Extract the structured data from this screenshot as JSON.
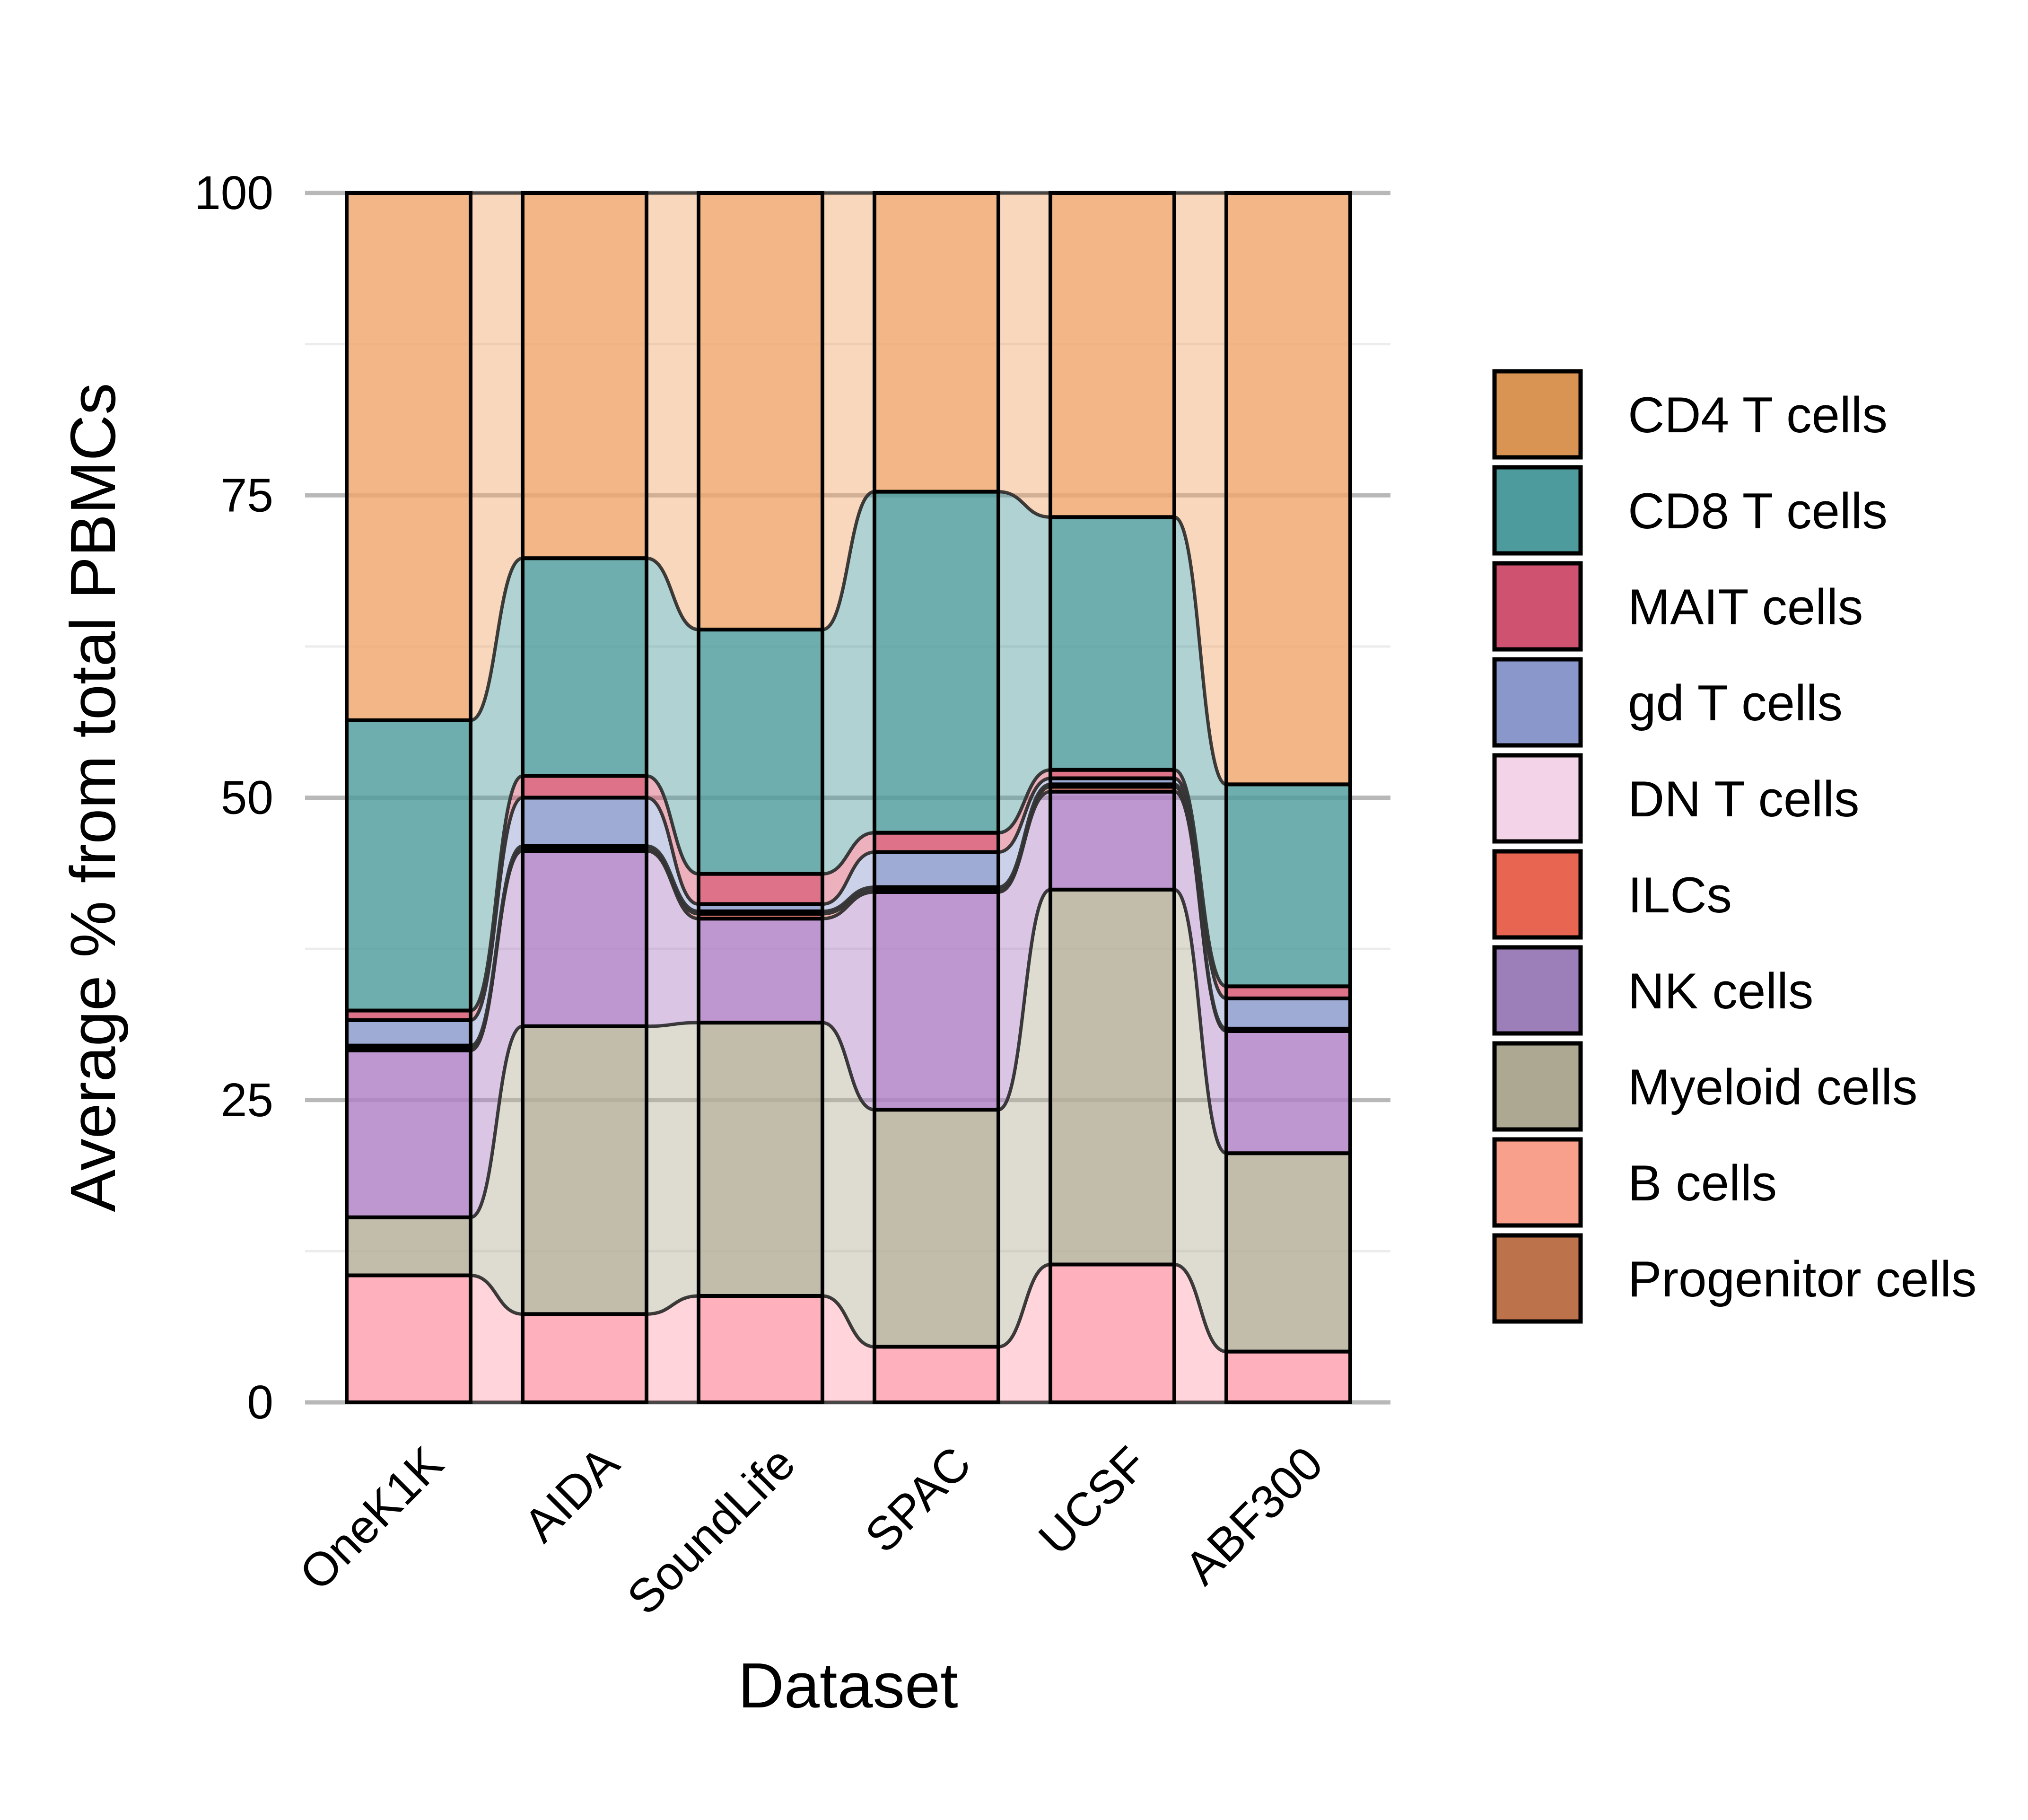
{
  "chart_data": {
    "type": "bar",
    "subtype": "stacked-alluvial",
    "xlabel": "Dataset",
    "ylabel": "Average % from total PBMCs",
    "ylim": [
      0,
      100
    ],
    "yticks": [
      "0",
      "25",
      "50",
      "75",
      "100"
    ],
    "grid": true,
    "legend_position": "right",
    "categories": [
      "OneK1K",
      "AIDA",
      "SoundLife",
      "SPAC",
      "UCSF",
      "ABF300"
    ],
    "series": [
      {
        "name": "B cells",
        "color": "#FF9FAE",
        "values": [
          10.5,
          7.3,
          8.8,
          4.6,
          11.4,
          4.2
        ]
      },
      {
        "name": "Myeloid cells",
        "color": "#B5AF99",
        "values": [
          4.8,
          23.8,
          22.6,
          19.6,
          31.0,
          16.4
        ]
      },
      {
        "name": "NK cells",
        "color": "#B07FC6",
        "values": [
          13.8,
          14.5,
          8.6,
          18.0,
          8.1,
          10.1
        ]
      },
      {
        "name": "ILCs",
        "color": "#E8675A",
        "values": [
          0.2,
          0.2,
          0.4,
          0.2,
          0.4,
          0.1
        ]
      },
      {
        "name": "DN T cells",
        "color": "#F2D3E6",
        "values": [
          0.2,
          0.2,
          0.2,
          0.2,
          0.2,
          0.1
        ]
      },
      {
        "name": "gd T cells",
        "color": "#8999CC",
        "values": [
          2.1,
          4.0,
          0.6,
          2.9,
          0.5,
          2.5
        ]
      },
      {
        "name": "MAIT cells",
        "color": "#D6536F",
        "values": [
          0.8,
          1.8,
          2.5,
          1.6,
          0.7,
          1.0
        ]
      },
      {
        "name": "CD8 T cells",
        "color": "#4F9C9C",
        "values": [
          24.0,
          18.0,
          20.2,
          28.2,
          20.9,
          16.7
        ]
      },
      {
        "name": "CD4 T cells",
        "color": "#F0A66C",
        "values": [
          43.6,
          30.2,
          36.1,
          24.7,
          26.8,
          48.9
        ]
      },
      {
        "name": "Progenitor cells",
        "color": "#BD7147",
        "values": [
          0.0,
          0.0,
          0.0,
          0.0,
          0.0,
          0.0
        ]
      }
    ],
    "legend_entries": [
      {
        "label": "CD4 T cells",
        "color": "#D99454"
      },
      {
        "label": "CD8 T cells",
        "color": "#4E9B9E"
      },
      {
        "label": "MAIT cells",
        "color": "#CF5271"
      },
      {
        "label": "gd T cells",
        "color": "#8A97CB"
      },
      {
        "label": "DN T cells",
        "color": "#F3D3E8"
      },
      {
        "label": "ILCs",
        "color": "#E86552"
      },
      {
        "label": "NK cells",
        "color": "#9C7FB8"
      },
      {
        "label": "Myeloid cells",
        "color": "#ADA892"
      },
      {
        "label": "B cells",
        "color": "#F9A08C"
      },
      {
        "label": "Progenitor cells",
        "color": "#BC724A"
      }
    ]
  }
}
